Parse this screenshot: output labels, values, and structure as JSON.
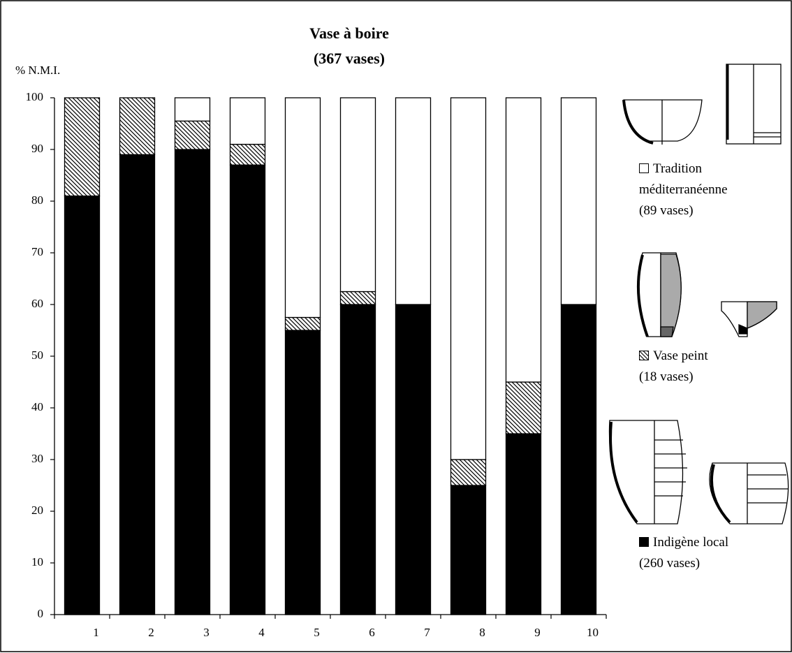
{
  "chart_data": {
    "type": "stacked_bar",
    "title": "Vase à boire",
    "subtitle": "(367 vases)",
    "y_label": "% N.M.I.",
    "categories": [
      "1",
      "2",
      "3",
      "4",
      "5",
      "6",
      "7",
      "8",
      "9",
      "10"
    ],
    "series": [
      {
        "name": "Indigène local",
        "legend_note": "(260 vases)",
        "color": "#000000",
        "hatch": false,
        "values": [
          81,
          89,
          90,
          87,
          55,
          60,
          60,
          25,
          35,
          60
        ]
      },
      {
        "name": "Vase peint",
        "legend_note": "(18 vases)",
        "color": "#ffffff",
        "hatch": true,
        "values": [
          19,
          11,
          5.5,
          4,
          2.5,
          2.5,
          0,
          5,
          10,
          0
        ]
      },
      {
        "name": "Tradition méditerranéenne",
        "legend_note": "(89 vases)",
        "color": "#ffffff",
        "hatch": false,
        "values": [
          0,
          0,
          4.5,
          9,
          42.5,
          37.5,
          40,
          70,
          55,
          40
        ]
      }
    ],
    "ylim": [
      0,
      100
    ],
    "yticks": [
      0,
      10,
      20,
      30,
      40,
      50,
      60,
      70,
      80,
      90,
      100
    ],
    "grid": false
  }
}
